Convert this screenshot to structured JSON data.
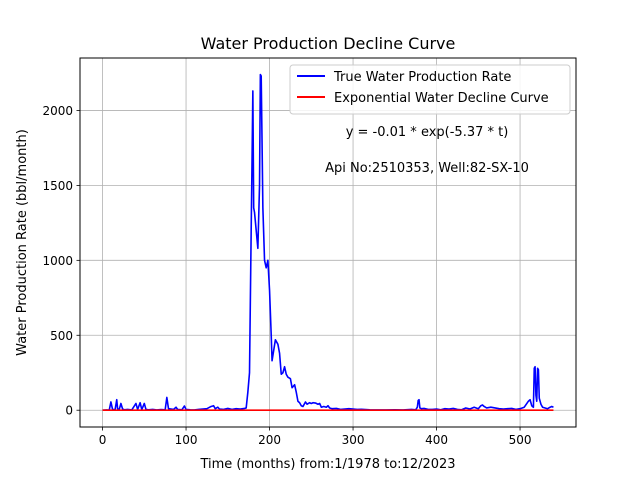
{
  "chart_data": {
    "type": "line",
    "title": "Water Production Decline Curve",
    "xlabel": "Time (months) from:1/1978 to:12/2023",
    "ylabel": "Water Production Rate (bbl/month)",
    "xlim": [
      -27,
      567
    ],
    "ylim": [
      -112,
      2350
    ],
    "grid": true,
    "legend_placement": "top-right",
    "x_ticks": [
      0,
      100,
      200,
      300,
      400,
      500
    ],
    "y_ticks": [
      0,
      500,
      1000,
      1500,
      2000
    ],
    "annotations": [
      "y = -0.01 * exp(-5.37 * t)",
      "Api No:2510353, Well:82-SX-10"
    ],
    "series": [
      {
        "name": "True Water Production Rate",
        "color": "#0000ff",
        "points": [
          [
            0,
            0
          ],
          [
            5,
            2
          ],
          [
            8,
            0
          ],
          [
            10,
            55
          ],
          [
            12,
            5
          ],
          [
            15,
            3
          ],
          [
            17,
            70
          ],
          [
            18,
            10
          ],
          [
            20,
            5
          ],
          [
            22,
            45
          ],
          [
            24,
            8
          ],
          [
            26,
            3
          ],
          [
            30,
            5
          ],
          [
            35,
            2
          ],
          [
            40,
            45
          ],
          [
            42,
            5
          ],
          [
            45,
            50
          ],
          [
            47,
            4
          ],
          [
            50,
            45
          ],
          [
            52,
            5
          ],
          [
            55,
            3
          ],
          [
            60,
            5
          ],
          [
            65,
            2
          ],
          [
            70,
            4
          ],
          [
            75,
            3
          ],
          [
            77,
            85
          ],
          [
            79,
            10
          ],
          [
            82,
            8
          ],
          [
            85,
            5
          ],
          [
            88,
            20
          ],
          [
            90,
            5
          ],
          [
            95,
            3
          ],
          [
            98,
            28
          ],
          [
            100,
            5
          ],
          [
            105,
            3
          ],
          [
            110,
            2
          ],
          [
            115,
            5
          ],
          [
            120,
            8
          ],
          [
            125,
            10
          ],
          [
            130,
            25
          ],
          [
            133,
            30
          ],
          [
            135,
            10
          ],
          [
            138,
            20
          ],
          [
            140,
            8
          ],
          [
            145,
            5
          ],
          [
            150,
            12
          ],
          [
            155,
            5
          ],
          [
            160,
            10
          ],
          [
            165,
            8
          ],
          [
            170,
            12
          ],
          [
            172,
            15
          ],
          [
            174,
            120
          ],
          [
            176,
            250
          ],
          [
            178,
            1200
          ],
          [
            179,
            1650
          ],
          [
            180,
            2130
          ],
          [
            181,
            1350
          ],
          [
            182,
            1320
          ],
          [
            184,
            1200
          ],
          [
            186,
            1080
          ],
          [
            188,
            1500
          ],
          [
            189,
            2240
          ],
          [
            190,
            2230
          ],
          [
            191,
            1800
          ],
          [
            192,
            1350
          ],
          [
            194,
            1000
          ],
          [
            196,
            950
          ],
          [
            198,
            1000
          ],
          [
            200,
            800
          ],
          [
            202,
            500
          ],
          [
            203,
            330
          ],
          [
            205,
            400
          ],
          [
            207,
            470
          ],
          [
            210,
            440
          ],
          [
            212,
            380
          ],
          [
            214,
            240
          ],
          [
            216,
            250
          ],
          [
            218,
            290
          ],
          [
            220,
            240
          ],
          [
            222,
            220
          ],
          [
            225,
            210
          ],
          [
            227,
            150
          ],
          [
            230,
            170
          ],
          [
            232,
            120
          ],
          [
            234,
            60
          ],
          [
            236,
            50
          ],
          [
            238,
            30
          ],
          [
            240,
            25
          ],
          [
            243,
            55
          ],
          [
            245,
            40
          ],
          [
            248,
            50
          ],
          [
            250,
            45
          ],
          [
            252,
            50
          ],
          [
            255,
            48
          ],
          [
            258,
            40
          ],
          [
            260,
            45
          ],
          [
            262,
            20
          ],
          [
            265,
            25
          ],
          [
            268,
            20
          ],
          [
            270,
            30
          ],
          [
            272,
            15
          ],
          [
            275,
            10
          ],
          [
            280,
            12
          ],
          [
            285,
            5
          ],
          [
            290,
            8
          ],
          [
            295,
            10
          ],
          [
            300,
            8
          ],
          [
            305,
            5
          ],
          [
            310,
            6
          ],
          [
            320,
            3
          ],
          [
            330,
            2
          ],
          [
            340,
            2
          ],
          [
            350,
            3
          ],
          [
            360,
            2
          ],
          [
            370,
            5
          ],
          [
            375,
            3
          ],
          [
            377,
            20
          ],
          [
            378,
            65
          ],
          [
            379,
            70
          ],
          [
            380,
            15
          ],
          [
            382,
            10
          ],
          [
            385,
            12
          ],
          [
            390,
            5
          ],
          [
            395,
            5
          ],
          [
            400,
            8
          ],
          [
            405,
            3
          ],
          [
            410,
            10
          ],
          [
            415,
            8
          ],
          [
            420,
            12
          ],
          [
            425,
            5
          ],
          [
            430,
            3
          ],
          [
            435,
            15
          ],
          [
            440,
            8
          ],
          [
            445,
            20
          ],
          [
            450,
            10
          ],
          [
            453,
            30
          ],
          [
            455,
            35
          ],
          [
            457,
            25
          ],
          [
            460,
            15
          ],
          [
            465,
            20
          ],
          [
            470,
            15
          ],
          [
            475,
            10
          ],
          [
            480,
            8
          ],
          [
            485,
            10
          ],
          [
            490,
            12
          ],
          [
            495,
            5
          ],
          [
            500,
            10
          ],
          [
            505,
            20
          ],
          [
            510,
            60
          ],
          [
            512,
            70
          ],
          [
            514,
            30
          ],
          [
            516,
            20
          ],
          [
            517,
            280
          ],
          [
            518,
            290
          ],
          [
            519,
            100
          ],
          [
            520,
            60
          ],
          [
            521,
            280
          ],
          [
            522,
            270
          ],
          [
            523,
            80
          ],
          [
            525,
            40
          ],
          [
            527,
            20
          ],
          [
            530,
            15
          ],
          [
            533,
            10
          ],
          [
            536,
            20
          ],
          [
            538,
            25
          ],
          [
            540,
            20
          ]
        ]
      },
      {
        "name": "Exponential Water Decline Curve",
        "color": "#ff0000",
        "points": [
          [
            0,
            0
          ],
          [
            540,
            0
          ]
        ]
      }
    ]
  }
}
